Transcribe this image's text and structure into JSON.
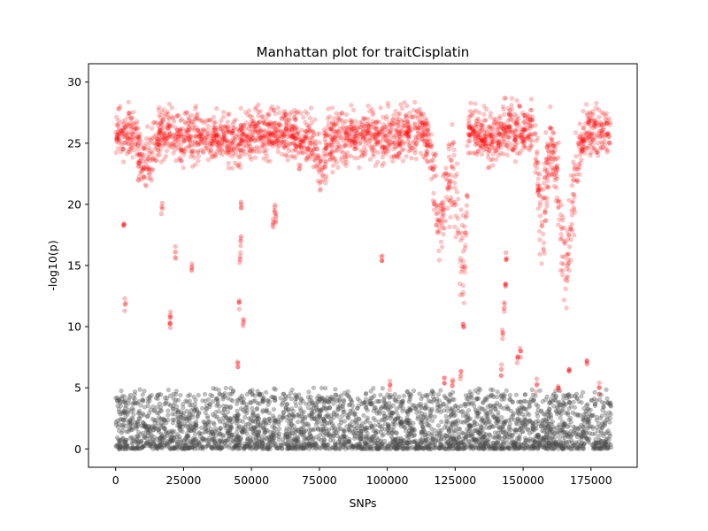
{
  "chart_data": {
    "type": "scatter",
    "title": "Manhattan plot for traitCisplatin",
    "xlabel": "SNPs",
    "ylabel": "-log10(p)",
    "xlim": [
      -10000,
      192000
    ],
    "ylim": [
      -1.5,
      31.5
    ],
    "xticks": [
      0,
      25000,
      50000,
      75000,
      100000,
      125000,
      150000,
      175000
    ],
    "yticks": [
      0,
      5,
      10,
      15,
      20,
      25,
      30
    ],
    "grid": false,
    "legend": "none",
    "colors": {
      "significant": "#ff0000",
      "background": "#4d4d4d"
    },
    "series": [
      {
        "color": "#ff0000",
        "x": [
          0,
          2000,
          4000,
          6000,
          8000,
          10000,
          12000,
          14000,
          16000,
          18000,
          20000,
          22000,
          25000,
          28000,
          31000,
          34000,
          37000,
          40000,
          43000,
          45000,
          47000,
          50000,
          53000,
          56000,
          59000,
          62000,
          65000,
          68000,
          71000,
          74000,
          76000,
          78000,
          81000,
          85000,
          89000,
          93000,
          97000,
          101000,
          105000,
          109000,
          113000,
          116000,
          118000,
          119500,
          121000,
          122500,
          124000,
          125500,
          127000,
          128000,
          129000,
          130000,
          132000,
          135000,
          138000,
          141000,
          144000,
          147000,
          150000,
          152000,
          154000,
          155500,
          157000,
          158500,
          160000,
          161500,
          163000,
          164500,
          166000,
          167500,
          169000,
          170500,
          172000,
          175000,
          178000,
          182000
        ],
        "y": [
          25.5,
          25.8,
          26.0,
          25.6,
          25.0,
          23.5,
          23.2,
          24.5,
          25.5,
          26.0,
          25.8,
          25.5,
          25.6,
          25.8,
          25.5,
          25.7,
          25.4,
          25.6,
          25.3,
          24.8,
          25.5,
          25.7,
          25.8,
          25.6,
          25.9,
          25.7,
          25.6,
          25.4,
          25.3,
          24.5,
          23.0,
          24.8,
          25.5,
          25.7,
          25.6,
          25.8,
          25.5,
          25.9,
          25.8,
          26.0,
          26.0,
          25.0,
          20.0,
          17.5,
          19.5,
          22.0,
          23.0,
          20.5,
          17.0,
          15.0,
          18.0,
          26.0,
          26.0,
          25.5,
          25.2,
          25.8,
          26.3,
          26.0,
          26.0,
          26.5,
          26.0,
          22.0,
          17.0,
          22.0,
          25.0,
          23.5,
          21.0,
          16.0,
          14.5,
          18.0,
          22.0,
          24.5,
          25.5,
          26.0,
          26.0,
          26.0
        ],
        "spread": [
          1.0,
          1.0,
          1.0,
          1.0,
          1.2,
          1.2,
          1.2,
          1.2,
          1.0,
          1.0,
          1.0,
          1.0,
          1.0,
          1.0,
          1.0,
          1.0,
          1.0,
          1.0,
          1.0,
          1.0,
          1.0,
          1.0,
          1.0,
          1.0,
          1.0,
          1.0,
          1.0,
          1.0,
          1.0,
          1.2,
          1.2,
          1.2,
          1.0,
          1.0,
          1.0,
          1.0,
          1.0,
          1.0,
          1.0,
          1.0,
          1.0,
          1.2,
          2.0,
          1.5,
          1.8,
          1.8,
          1.8,
          2.0,
          2.0,
          2.0,
          2.0,
          1.0,
          1.0,
          1.0,
          1.0,
          1.0,
          1.2,
          1.0,
          1.0,
          1.0,
          1.0,
          2.0,
          1.5,
          1.8,
          1.2,
          1.5,
          1.8,
          1.5,
          1.5,
          1.8,
          1.8,
          1.5,
          1.0,
          1.0,
          1.0,
          1.0
        ]
      },
      {
        "color": "#ff0000",
        "x": [
          3000,
          3500,
          17000,
          20000,
          20200,
          22000,
          28000,
          45000,
          45500,
          45800,
          46000,
          46200,
          47000,
          58000,
          58500,
          59000,
          98000,
          101000,
          121000,
          124000,
          127000,
          128000,
          142000,
          142500,
          143000,
          143500,
          143800,
          148000,
          149000,
          155000,
          163000,
          167000,
          173500,
          178000
        ],
        "y": [
          18.3,
          11.8,
          19.8,
          10.3,
          10.8,
          16.1,
          14.6,
          7.0,
          12.0,
          15.5,
          17.0,
          20.0,
          10.6,
          18.5,
          19.5,
          19.0,
          15.4,
          5.2,
          5.4,
          5.5,
          6.0,
          10.0,
          6.5,
          9.5,
          11.5,
          13.5,
          15.5,
          7.5,
          8.0,
          5.2,
          5.0,
          6.5,
          7.2,
          5.0
        ]
      },
      {
        "color": "#4d4d4d",
        "x_range": [
          0,
          182500
        ],
        "y_range": [
          0,
          4.5
        ],
        "peak_y": 5.0
      }
    ]
  }
}
